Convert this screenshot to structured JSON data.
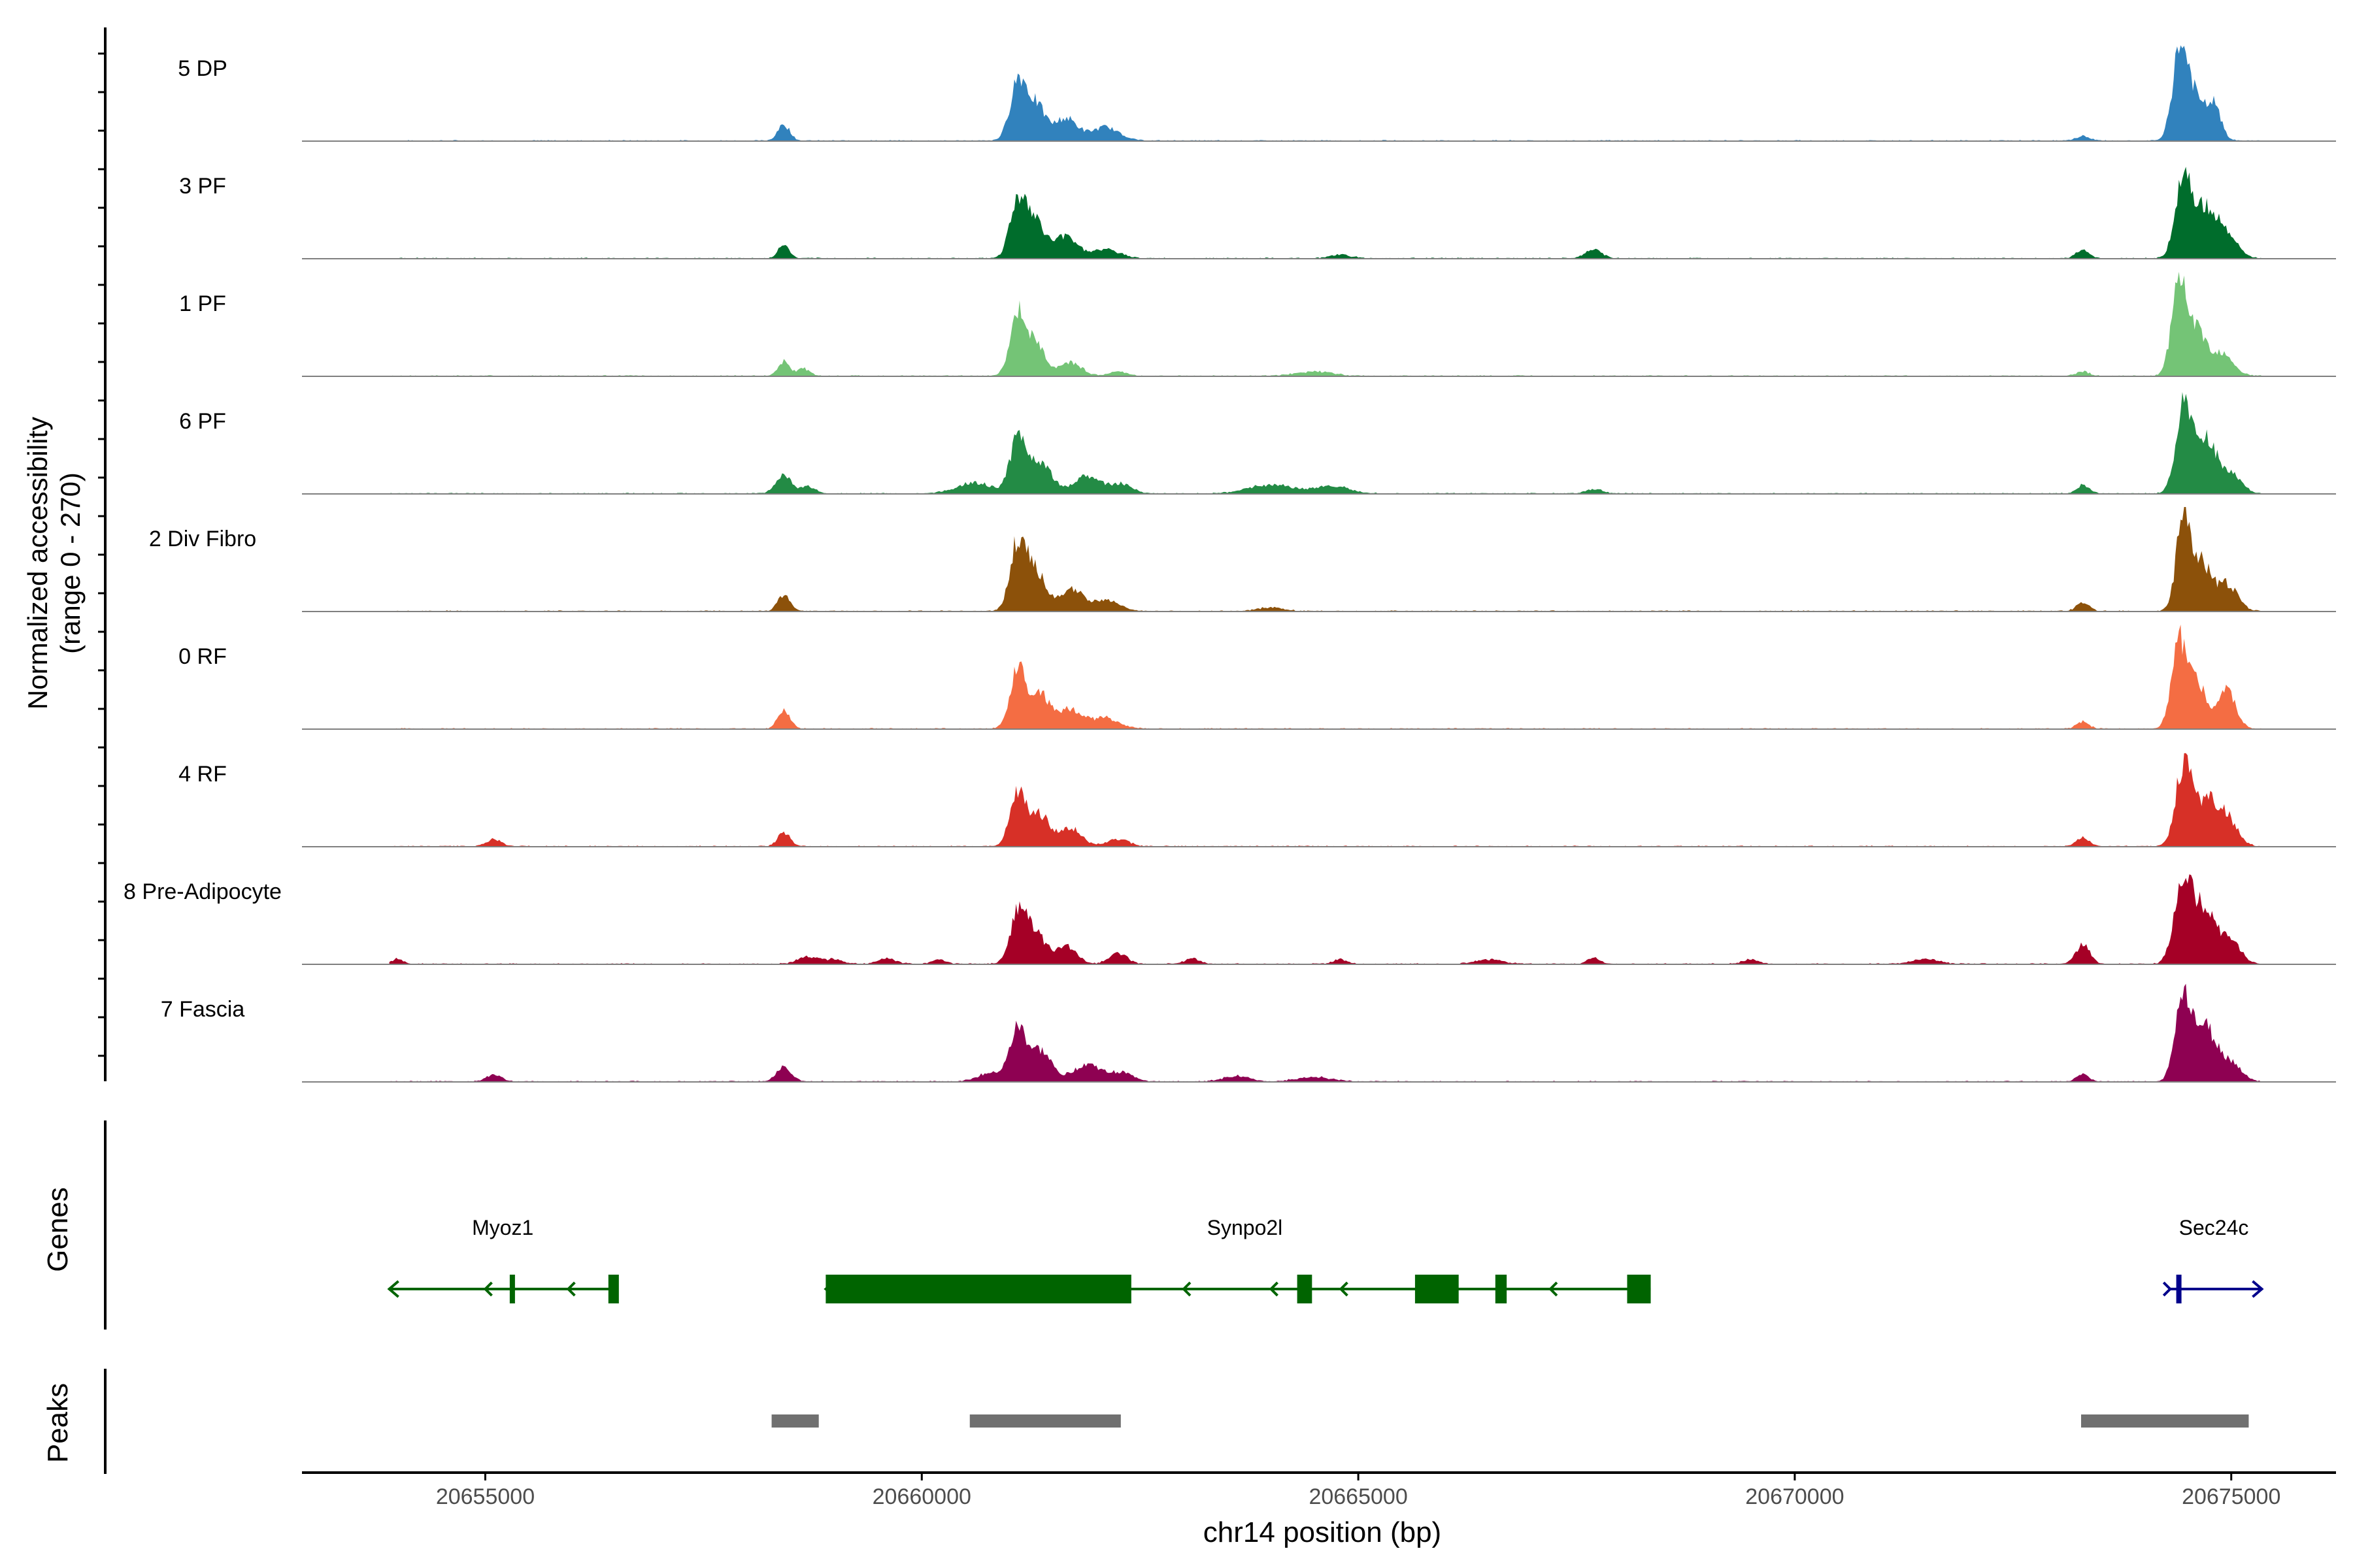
{
  "chart_data": {
    "type": "area",
    "title": "",
    "y_axis_title": "Normalized accessibility",
    "y_axis_subtitle": "(range 0 - 270)",
    "x_axis_title": "chr14 position (bp)",
    "x_range": [
      20652900,
      20676200
    ],
    "y_range": [
      0,
      270
    ],
    "x_ticks": [
      20655000,
      20660000,
      20665000,
      20670000,
      20675000
    ],
    "x_tick_labels": [
      "20655000",
      "20660000",
      "20665000",
      "20670000",
      "20675000"
    ],
    "tracks": [
      {
        "name": "5 DP",
        "color": "#3182bd",
        "peaks": [
          [
            20658420,
            0.18,
            70
          ],
          [
            20661100,
            0.65,
            90
          ],
          [
            20661300,
            0.4,
            110
          ],
          [
            20661650,
            0.25,
            130
          ],
          [
            20662100,
            0.15,
            160
          ],
          [
            20674400,
            0.85,
            80
          ],
          [
            20674550,
            0.55,
            110
          ],
          [
            20674800,
            0.4,
            80
          ],
          [
            20673300,
            0.05,
            80
          ]
        ]
      },
      {
        "name": "3 PF",
        "color": "#006d2c",
        "peaks": [
          [
            20658420,
            0.16,
            60
          ],
          [
            20661100,
            0.65,
            90
          ],
          [
            20661300,
            0.4,
            110
          ],
          [
            20661650,
            0.25,
            130
          ],
          [
            20662100,
            0.1,
            160
          ],
          [
            20664800,
            0.04,
            120
          ],
          [
            20667700,
            0.1,
            90
          ],
          [
            20673300,
            0.1,
            70
          ],
          [
            20674450,
            0.9,
            90
          ],
          [
            20674700,
            0.55,
            130
          ],
          [
            20674950,
            0.25,
            120
          ]
        ]
      },
      {
        "name": "1 PF",
        "color": "#74c476",
        "peaks": [
          [
            20658420,
            0.16,
            70
          ],
          [
            20658650,
            0.08,
            70
          ],
          [
            20661100,
            0.65,
            90
          ],
          [
            20661300,
            0.35,
            110
          ],
          [
            20661700,
            0.15,
            130
          ],
          [
            20662250,
            0.05,
            100
          ],
          [
            20664500,
            0.05,
            200
          ],
          [
            20674400,
            0.95,
            85
          ],
          [
            20674600,
            0.5,
            110
          ],
          [
            20674900,
            0.25,
            120
          ],
          [
            20673300,
            0.05,
            70
          ]
        ]
      },
      {
        "name": "6 PF",
        "color": "#238b45",
        "peaks": [
          [
            20658420,
            0.2,
            90
          ],
          [
            20658700,
            0.08,
            80
          ],
          [
            20660600,
            0.12,
            200
          ],
          [
            20661100,
            0.6,
            90
          ],
          [
            20661350,
            0.35,
            130
          ],
          [
            20661900,
            0.2,
            160
          ],
          [
            20662300,
            0.1,
            120
          ],
          [
            20664000,
            0.1,
            250
          ],
          [
            20664700,
            0.08,
            200
          ],
          [
            20667700,
            0.05,
            90
          ],
          [
            20673300,
            0.1,
            70
          ],
          [
            20674450,
            0.9,
            90
          ],
          [
            20674700,
            0.6,
            130
          ],
          [
            20675000,
            0.2,
            120
          ]
        ]
      },
      {
        "name": "2 Div Fibro",
        "color": "#8c510a",
        "peaks": [
          [
            20658420,
            0.18,
            70
          ],
          [
            20661100,
            0.75,
            90
          ],
          [
            20661300,
            0.45,
            110
          ],
          [
            20661700,
            0.25,
            130
          ],
          [
            20662100,
            0.12,
            160
          ],
          [
            20664000,
            0.04,
            150
          ],
          [
            20673300,
            0.1,
            70
          ],
          [
            20674450,
            1.0,
            80
          ],
          [
            20674650,
            0.55,
            110
          ],
          [
            20674950,
            0.3,
            120
          ]
        ]
      },
      {
        "name": "0 RF",
        "color": "#f46d43",
        "peaks": [
          [
            20658420,
            0.2,
            70
          ],
          [
            20661100,
            0.65,
            90
          ],
          [
            20661350,
            0.4,
            110
          ],
          [
            20661700,
            0.22,
            130
          ],
          [
            20662100,
            0.12,
            160
          ],
          [
            20673300,
            0.08,
            70
          ],
          [
            20674400,
            0.9,
            85
          ],
          [
            20674600,
            0.55,
            110
          ],
          [
            20674950,
            0.45,
            100
          ]
        ]
      },
      {
        "name": "4 RF",
        "color": "#d73027",
        "peaks": [
          [
            20655100,
            0.08,
            80
          ],
          [
            20658420,
            0.16,
            70
          ],
          [
            20661100,
            0.6,
            90
          ],
          [
            20661350,
            0.35,
            110
          ],
          [
            20661700,
            0.2,
            130
          ],
          [
            20662250,
            0.08,
            120
          ],
          [
            20673300,
            0.1,
            70
          ],
          [
            20674450,
            0.85,
            90
          ],
          [
            20674700,
            0.5,
            130
          ],
          [
            20674950,
            0.3,
            120
          ]
        ]
      },
      {
        "name": "8 Pre-Adipocyte",
        "color": "#a50026",
        "peaks": [
          [
            20654000,
            0.06,
            60
          ],
          [
            20658700,
            0.08,
            120
          ],
          [
            20659000,
            0.05,
            100
          ],
          [
            20659600,
            0.06,
            100
          ],
          [
            20660200,
            0.05,
            80
          ],
          [
            20661100,
            0.55,
            90
          ],
          [
            20661300,
            0.35,
            110
          ],
          [
            20661650,
            0.2,
            120
          ],
          [
            20662250,
            0.12,
            100
          ],
          [
            20663100,
            0.06,
            80
          ],
          [
            20664800,
            0.05,
            80
          ],
          [
            20666500,
            0.05,
            150
          ],
          [
            20667700,
            0.07,
            70
          ],
          [
            20669500,
            0.05,
            90
          ],
          [
            20671500,
            0.05,
            150
          ],
          [
            20673300,
            0.22,
            80
          ],
          [
            20674450,
            0.9,
            100
          ],
          [
            20674700,
            0.6,
            130
          ],
          [
            20675000,
            0.25,
            110
          ]
        ]
      },
      {
        "name": "7 Fascia",
        "color": "#8e0152",
        "peaks": [
          [
            20655100,
            0.08,
            80
          ],
          [
            20658420,
            0.18,
            80
          ],
          [
            20660800,
            0.1,
            150
          ],
          [
            20661100,
            0.55,
            90
          ],
          [
            20661350,
            0.35,
            130
          ],
          [
            20661900,
            0.2,
            160
          ],
          [
            20662300,
            0.1,
            120
          ],
          [
            20663600,
            0.06,
            150
          ],
          [
            20664500,
            0.05,
            200
          ],
          [
            20673300,
            0.08,
            70
          ],
          [
            20674450,
            0.95,
            90
          ],
          [
            20674700,
            0.6,
            130
          ],
          [
            20675000,
            0.2,
            120
          ]
        ]
      }
    ],
    "genes_track_label": "Genes",
    "genes": [
      {
        "name": "Myoz1",
        "color": "#006400",
        "strand": "-",
        "start": 20653900,
        "end": 20656500,
        "label_pos": 20655200,
        "exons": [
          [
            20655280,
            20655340
          ],
          [
            20656410,
            20656530
          ]
        ],
        "chevrons": [
          20655000,
          20655950
        ]
      },
      {
        "name": "Synpo2l",
        "color": "#006400",
        "strand": "-",
        "start": 20658900,
        "end": 20668350,
        "label_pos": 20663700,
        "exons": [
          [
            20658900,
            20662400
          ],
          [
            20664300,
            20664470
          ],
          [
            20665650,
            20666150
          ],
          [
            20666570,
            20666700
          ],
          [
            20668080,
            20668350
          ]
        ],
        "chevrons": [
          20663000,
          20664000,
          20664800,
          20667200
        ]
      },
      {
        "name": "Sec24c",
        "color": "#00008b",
        "strand": "+",
        "start": 20674300,
        "end": 20675350,
        "label_pos": 20674800,
        "exons": [
          [
            20674370,
            20674420
          ]
        ],
        "chevrons": [
          20674300
        ]
      }
    ],
    "peaks_track_label": "Peaks",
    "peak_regions": [
      [
        20658280,
        20658820
      ],
      [
        20660550,
        20662280
      ],
      [
        20673280,
        20675200
      ]
    ]
  }
}
